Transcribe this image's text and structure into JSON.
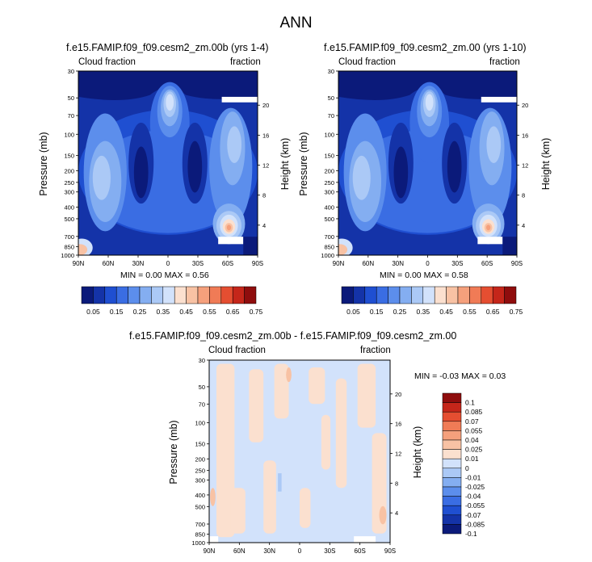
{
  "title": "ANN",
  "panels": [
    {
      "title": "f.e15.FAMIP.f09_f09.cesm2_zm.00b (yrs 1-4)",
      "left_label": "Cloud fraction",
      "right_label": "fraction",
      "ylabel": "Pressure (mb)",
      "ylabel_right": "Height (km)",
      "minmax": "MIN =   0.00   MAX =   0.56"
    },
    {
      "title": "f.e15.FAMIP.f09_f09.cesm2_zm.00 (yrs 1-10)",
      "left_label": "Cloud fraction",
      "right_label": "fraction",
      "ylabel": "Pressure (mb)",
      "ylabel_right": "Height (km)",
      "minmax": "MIN =   0.00   MAX =   0.58"
    },
    {
      "title": "f.e15.FAMIP.f09_f09.cesm2_zm.00b - f.e15.FAMIP.f09_f09.cesm2_zm.00",
      "left_label": "Cloud fraction",
      "right_label": "fraction",
      "ylabel": "Pressure (mb)",
      "ylabel_right": "Height (km)",
      "minmax": "MIN =   -0.03   MAX =   0.03"
    }
  ],
  "x_ticks": [
    "90N",
    "60N",
    "30N",
    "0",
    "30S",
    "60S",
    "90S"
  ],
  "p_ticks": [
    "30",
    "50",
    "70",
    "100",
    "150",
    "200",
    "250",
    "300",
    "400",
    "500",
    "700",
    "850",
    "1000"
  ],
  "h_ticks": [
    "20",
    "16",
    "12",
    "8",
    "4"
  ],
  "abs_colorbar": {
    "colors": [
      "#0b1a7a",
      "#1433a8",
      "#1f4fd1",
      "#3a6de3",
      "#5c8eec",
      "#84aef1",
      "#abc9f6",
      "#d2e2fb",
      "#fbe0cf",
      "#f8c2a4",
      "#f5a07c",
      "#f07b56",
      "#e54e31",
      "#c5261a",
      "#8f0d0d"
    ],
    "labels": [
      "0.05",
      "0.15",
      "0.25",
      "0.35",
      "0.45",
      "0.55",
      "0.65",
      "0.75"
    ]
  },
  "diff_colorbar": {
    "colors": [
      "#0b1a7a",
      "#1433a8",
      "#1f4fd1",
      "#3a6de3",
      "#5c8eec",
      "#84aef1",
      "#abc9f6",
      "#d2e2fb",
      "#fbe0cf",
      "#f8c2a4",
      "#f5a07c",
      "#f07b56",
      "#e54e31",
      "#c5261a",
      "#8f0d0d"
    ],
    "labels": [
      "0.1",
      "0.085",
      "0.07",
      "0.055",
      "0.04",
      "0.025",
      "0.01",
      "0",
      "-0.01",
      "-0.025",
      "-0.04",
      "-0.055",
      "-0.07",
      "-0.085",
      "-0.1"
    ]
  },
  "chart_data": [
    {
      "type": "heatmap",
      "title": "f.e15.FAMIP.f09_f09.cesm2_zm.00b (yrs 1-4)",
      "x": [
        "90N",
        "60N",
        "30N",
        "0",
        "30S",
        "60S",
        "90S"
      ],
      "y_pressure_mb": [
        30,
        50,
        70,
        100,
        150,
        200,
        250,
        300,
        400,
        500,
        700,
        850,
        1000
      ],
      "ylabel": "Pressure (mb)",
      "ylabel_right": "Height (km)",
      "min": 0.0,
      "max": 0.56
    },
    {
      "type": "heatmap",
      "title": "f.e15.FAMIP.f09_f09.cesm2_zm.00 (yrs 1-10)",
      "x": [
        "90N",
        "60N",
        "30N",
        "0",
        "30S",
        "60S",
        "90S"
      ],
      "y_pressure_mb": [
        30,
        50,
        70,
        100,
        150,
        200,
        250,
        300,
        400,
        500,
        700,
        850,
        1000
      ],
      "ylabel": "Pressure (mb)",
      "ylabel_right": "Height (km)",
      "min": 0.0,
      "max": 0.58
    },
    {
      "type": "heatmap",
      "title": "f.e15.FAMIP.f09_f09.cesm2_zm.00b - f.e15.FAMIP.f09_f09.cesm2_zm.00",
      "x": [
        "90N",
        "60N",
        "30N",
        "0",
        "30S",
        "60S",
        "90S"
      ],
      "y_pressure_mb": [
        30,
        50,
        70,
        100,
        150,
        200,
        250,
        300,
        400,
        500,
        700,
        850,
        1000
      ],
      "ylabel": "Pressure (mb)",
      "ylabel_right": "Height (km)",
      "min": -0.03,
      "max": 0.03
    }
  ]
}
